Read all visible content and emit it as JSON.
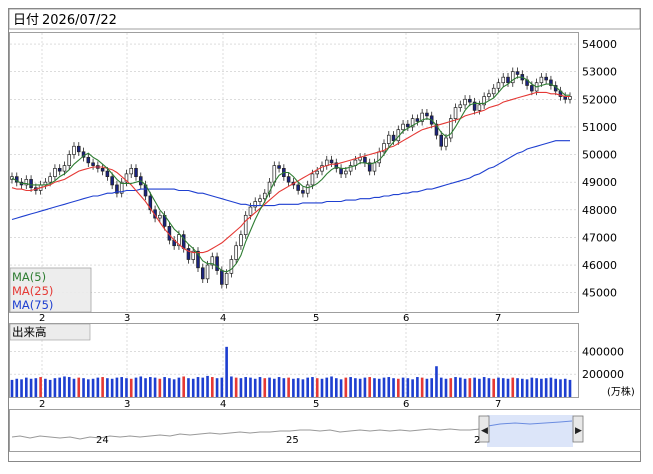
{
  "header": {
    "date_label": "日付",
    "date_value": "2026/07/22"
  },
  "legend": {
    "items": [
      {
        "label": "MA(5)",
        "color": "#2e7d32"
      },
      {
        "label": "MA(25)",
        "color": "#e53935"
      },
      {
        "label": "MA(75)",
        "color": "#1e3fd0"
      }
    ]
  },
  "volume_panel": {
    "title": "出来高",
    "unit": "(万株)"
  },
  "navigator": {
    "labels": [
      "24",
      "25",
      "2"
    ]
  },
  "colors": {
    "up_candle": "#ffffff",
    "down_candle": "#1a237e",
    "volume_red": "#e53935",
    "volume_blue": "#1e3fd0",
    "grid": "#c8c8c8"
  },
  "chart_data": [
    {
      "type": "candlestick",
      "name": "price",
      "x_tick_labels": [
        "2",
        "3",
        "4",
        "5",
        "6",
        "7"
      ],
      "y_ticks": [
        45000,
        46000,
        47000,
        48000,
        49000,
        50000,
        51000,
        52000,
        53000,
        54000
      ],
      "ylim": [
        44300,
        54400
      ],
      "grid": true,
      "close": [
        49200,
        49000,
        48900,
        49100,
        48800,
        48700,
        48900,
        49000,
        49200,
        49500,
        49400,
        49600,
        50000,
        50300,
        50100,
        49900,
        49700,
        49600,
        49500,
        49400,
        49200,
        48900,
        48600,
        49000,
        49300,
        49500,
        49200,
        48900,
        48500,
        48000,
        47700,
        47800,
        47400,
        46900,
        46700,
        47100,
        46600,
        46200,
        46500,
        45900,
        45500,
        46000,
        46300,
        45800,
        45300,
        45700,
        46200,
        46700,
        47100,
        47800,
        48100,
        48300,
        48400,
        48600,
        49000,
        49600,
        49500,
        49200,
        49000,
        48900,
        48700,
        48600,
        48900,
        49300,
        49400,
        49600,
        49800,
        49700,
        49500,
        49300,
        49400,
        49600,
        49800,
        49900,
        49700,
        49400,
        49700,
        50100,
        50400,
        50700,
        50500,
        50900,
        51100,
        51000,
        51300,
        51200,
        51500,
        51400,
        51100,
        50700,
        50300,
        50600,
        51300,
        51700,
        51800,
        52000,
        51900,
        51600,
        51800,
        52100,
        52200,
        52400,
        52600,
        52800,
        52600,
        53000,
        52900,
        52700,
        52500,
        52300,
        52600,
        52800,
        52700,
        52500,
        52300,
        52100,
        52000,
        52100
      ],
      "ma5": [
        49150,
        49050,
        48950,
        48950,
        48900,
        48900,
        48900,
        48900,
        48950,
        49050,
        49200,
        49300,
        49450,
        49650,
        49800,
        49950,
        50050,
        49900,
        49800,
        49650,
        49500,
        49300,
        49100,
        48950,
        48950,
        48950,
        49000,
        49050,
        48900,
        48600,
        48300,
        48000,
        47800,
        47550,
        47300,
        47150,
        46950,
        46750,
        46600,
        46400,
        46150,
        46050,
        46050,
        45950,
        45800,
        45750,
        45850,
        46050,
        46350,
        46850,
        47250,
        47650,
        48000,
        48300,
        48650,
        49000,
        49250,
        49350,
        49350,
        49200,
        49000,
        48850,
        48800,
        48850,
        48950,
        49100,
        49300,
        49450,
        49550,
        49500,
        49500,
        49550,
        49600,
        49700,
        49700,
        49650,
        49700,
        49800,
        50000,
        50250,
        50450,
        50650,
        50850,
        50950,
        51050,
        51150,
        51250,
        51300,
        51250,
        51050,
        50800,
        50650,
        50750,
        51000,
        51300,
        51600,
        51800,
        51850,
        51850,
        51850,
        51950,
        52050,
        52250,
        52450,
        52550,
        52700,
        52800,
        52800,
        52700,
        52550,
        52450,
        52500,
        52550,
        52550,
        52450,
        52300,
        52150,
        52150
      ],
      "ma25": [
        48800,
        48750,
        48750,
        48700,
        48700,
        48750,
        48800,
        48850,
        48900,
        49000,
        49050,
        49100,
        49200,
        49300,
        49400,
        49450,
        49500,
        49550,
        49550,
        49550,
        49500,
        49450,
        49350,
        49200,
        49050,
        48900,
        48700,
        48500,
        48300,
        48050,
        47800,
        47550,
        47300,
        47100,
        46900,
        46750,
        46600,
        46500,
        46450,
        46450,
        46450,
        46500,
        46600,
        46700,
        46800,
        46950,
        47100,
        47250,
        47400,
        47600,
        47750,
        47900,
        48050,
        48200,
        48350,
        48500,
        48650,
        48750,
        48850,
        48950,
        49050,
        49150,
        49250,
        49350,
        49450,
        49550,
        49600,
        49650,
        49650,
        49700,
        49750,
        49800,
        49850,
        49900,
        49950,
        50000,
        50050,
        50100,
        50150,
        50250,
        50300,
        50400,
        50500,
        50600,
        50700,
        50800,
        50900,
        50950,
        51000,
        51050,
        51100,
        51150,
        51200,
        51250,
        51300,
        51400,
        51450,
        51500,
        51550,
        51600,
        51700,
        51750,
        51800,
        51900,
        51950,
        52000,
        52050,
        52100,
        52150,
        52200,
        52250,
        52250,
        52250,
        52200,
        52200,
        52150,
        52100,
        52100
      ],
      "ma75": [
        47650,
        47700,
        47750,
        47800,
        47850,
        47900,
        47950,
        48000,
        48050,
        48100,
        48150,
        48200,
        48250,
        48300,
        48350,
        48400,
        48450,
        48500,
        48500,
        48550,
        48600,
        48600,
        48650,
        48650,
        48700,
        48700,
        48700,
        48750,
        48750,
        48750,
        48750,
        48750,
        48750,
        48750,
        48750,
        48700,
        48700,
        48700,
        48650,
        48600,
        48600,
        48550,
        48500,
        48450,
        48400,
        48350,
        48300,
        48250,
        48200,
        48200,
        48150,
        48150,
        48150,
        48150,
        48150,
        48150,
        48200,
        48200,
        48200,
        48200,
        48200,
        48250,
        48250,
        48250,
        48250,
        48250,
        48300,
        48300,
        48300,
        48300,
        48350,
        48350,
        48350,
        48400,
        48400,
        48400,
        48450,
        48450,
        48500,
        48500,
        48550,
        48550,
        48600,
        48600,
        48650,
        48650,
        48700,
        48750,
        48750,
        48800,
        48850,
        48900,
        48950,
        49000,
        49050,
        49100,
        49150,
        49250,
        49300,
        49400,
        49500,
        49550,
        49650,
        49750,
        49850,
        49950,
        50050,
        50100,
        50200,
        50250,
        50300,
        50350,
        50400,
        50450,
        50500,
        50500,
        50500,
        50500
      ]
    },
    {
      "type": "bar",
      "name": "volume",
      "unit": "万株",
      "y_ticks": [
        200000,
        400000
      ],
      "ylim": [
        0,
        500000
      ],
      "red_indices": [
        6,
        14,
        19,
        25,
        31,
        36,
        42,
        47,
        53,
        58,
        64,
        70,
        75,
        81,
        86,
        92,
        96,
        101,
        105
      ],
      "values": [
        150000,
        160000,
        155000,
        170000,
        160000,
        165000,
        175000,
        160000,
        150000,
        165000,
        170000,
        180000,
        175000,
        160000,
        170000,
        165000,
        155000,
        160000,
        170000,
        175000,
        165000,
        160000,
        170000,
        175000,
        165000,
        160000,
        170000,
        180000,
        165000,
        175000,
        170000,
        160000,
        175000,
        165000,
        155000,
        170000,
        180000,
        165000,
        160000,
        175000,
        170000,
        185000,
        175000,
        165000,
        170000,
        440000,
        180000,
        170000,
        165000,
        175000,
        170000,
        160000,
        175000,
        165000,
        170000,
        160000,
        175000,
        165000,
        170000,
        160000,
        165000,
        155000,
        170000,
        175000,
        165000,
        160000,
        170000,
        180000,
        165000,
        155000,
        170000,
        175000,
        165000,
        160000,
        170000,
        175000,
        165000,
        160000,
        170000,
        175000,
        165000,
        160000,
        170000,
        165000,
        155000,
        175000,
        170000,
        160000,
        165000,
        270000,
        170000,
        160000,
        165000,
        175000,
        170000,
        160000,
        165000,
        170000,
        160000,
        175000,
        165000,
        160000,
        170000,
        165000,
        160000,
        170000,
        165000,
        160000,
        155000,
        170000,
        165000,
        160000,
        165000,
        170000,
        160000,
        155000,
        160000,
        150000
      ]
    }
  ]
}
